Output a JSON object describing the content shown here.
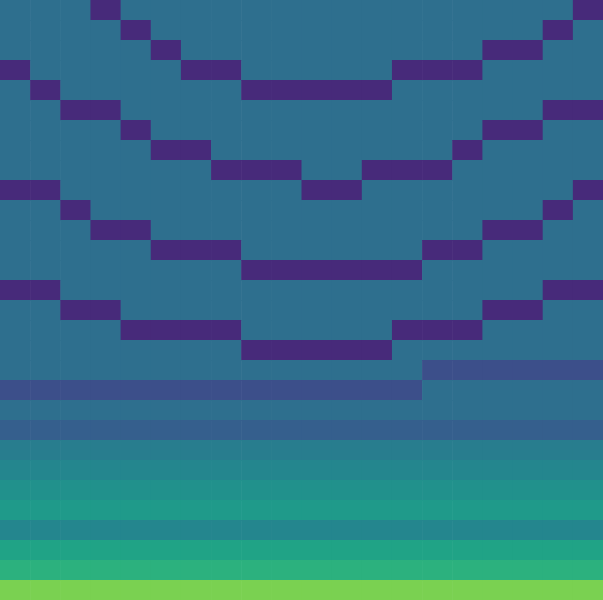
{
  "chart_data": {
    "type": "heatmap",
    "tick_labels": false,
    "zlim": [
      0,
      1
    ],
    "cells": [
      [
        0.36,
        0.36,
        0.36,
        0.12,
        0.36,
        0.36,
        0.36,
        0.36,
        0.36,
        0.36,
        0.36,
        0.36,
        0.36,
        0.36,
        0.36,
        0.36,
        0.36,
        0.36,
        0.36,
        0.12
      ],
      [
        0.36,
        0.36,
        0.36,
        0.36,
        0.12,
        0.36,
        0.36,
        0.36,
        0.36,
        0.36,
        0.36,
        0.36,
        0.36,
        0.36,
        0.36,
        0.36,
        0.36,
        0.36,
        0.12,
        0.36
      ],
      [
        0.36,
        0.36,
        0.36,
        0.36,
        0.36,
        0.12,
        0.36,
        0.36,
        0.36,
        0.36,
        0.36,
        0.36,
        0.36,
        0.36,
        0.36,
        0.36,
        0.12,
        0.12,
        0.36,
        0.36
      ],
      [
        0.12,
        0.36,
        0.36,
        0.36,
        0.36,
        0.36,
        0.12,
        0.12,
        0.36,
        0.36,
        0.36,
        0.36,
        0.36,
        0.12,
        0.12,
        0.12,
        0.36,
        0.36,
        0.36,
        0.36
      ],
      [
        0.36,
        0.12,
        0.36,
        0.36,
        0.36,
        0.36,
        0.36,
        0.36,
        0.12,
        0.12,
        0.12,
        0.12,
        0.12,
        0.36,
        0.36,
        0.36,
        0.36,
        0.36,
        0.36,
        0.36
      ],
      [
        0.36,
        0.36,
        0.12,
        0.12,
        0.36,
        0.36,
        0.36,
        0.36,
        0.36,
        0.36,
        0.36,
        0.36,
        0.36,
        0.36,
        0.36,
        0.36,
        0.36,
        0.36,
        0.12,
        0.12
      ],
      [
        0.36,
        0.36,
        0.36,
        0.36,
        0.12,
        0.36,
        0.36,
        0.36,
        0.36,
        0.36,
        0.36,
        0.36,
        0.36,
        0.36,
        0.36,
        0.36,
        0.12,
        0.12,
        0.36,
        0.36
      ],
      [
        0.36,
        0.36,
        0.36,
        0.36,
        0.36,
        0.12,
        0.12,
        0.36,
        0.36,
        0.36,
        0.36,
        0.36,
        0.36,
        0.36,
        0.36,
        0.12,
        0.36,
        0.36,
        0.36,
        0.36
      ],
      [
        0.36,
        0.36,
        0.36,
        0.36,
        0.36,
        0.36,
        0.36,
        0.12,
        0.12,
        0.12,
        0.36,
        0.36,
        0.12,
        0.12,
        0.12,
        0.36,
        0.36,
        0.36,
        0.36,
        0.36
      ],
      [
        0.12,
        0.12,
        0.36,
        0.36,
        0.36,
        0.36,
        0.36,
        0.36,
        0.36,
        0.36,
        0.12,
        0.12,
        0.36,
        0.36,
        0.36,
        0.36,
        0.36,
        0.36,
        0.36,
        0.12
      ],
      [
        0.36,
        0.36,
        0.12,
        0.36,
        0.36,
        0.36,
        0.36,
        0.36,
        0.36,
        0.36,
        0.36,
        0.36,
        0.36,
        0.36,
        0.36,
        0.36,
        0.36,
        0.36,
        0.12,
        0.36
      ],
      [
        0.36,
        0.36,
        0.36,
        0.12,
        0.12,
        0.36,
        0.36,
        0.36,
        0.36,
        0.36,
        0.36,
        0.36,
        0.36,
        0.36,
        0.36,
        0.36,
        0.12,
        0.12,
        0.36,
        0.36
      ],
      [
        0.36,
        0.36,
        0.36,
        0.36,
        0.36,
        0.12,
        0.12,
        0.12,
        0.36,
        0.36,
        0.36,
        0.36,
        0.36,
        0.36,
        0.12,
        0.12,
        0.36,
        0.36,
        0.36,
        0.36
      ],
      [
        0.36,
        0.36,
        0.36,
        0.36,
        0.36,
        0.36,
        0.36,
        0.36,
        0.12,
        0.12,
        0.12,
        0.12,
        0.12,
        0.12,
        0.36,
        0.36,
        0.36,
        0.36,
        0.36,
        0.36
      ],
      [
        0.12,
        0.12,
        0.36,
        0.36,
        0.36,
        0.36,
        0.36,
        0.36,
        0.36,
        0.36,
        0.36,
        0.36,
        0.36,
        0.36,
        0.36,
        0.36,
        0.36,
        0.36,
        0.12,
        0.12
      ],
      [
        0.36,
        0.36,
        0.12,
        0.12,
        0.36,
        0.36,
        0.36,
        0.36,
        0.36,
        0.36,
        0.36,
        0.36,
        0.36,
        0.36,
        0.36,
        0.36,
        0.12,
        0.12,
        0.36,
        0.36
      ],
      [
        0.36,
        0.36,
        0.36,
        0.36,
        0.12,
        0.12,
        0.12,
        0.12,
        0.36,
        0.36,
        0.36,
        0.36,
        0.36,
        0.12,
        0.12,
        0.12,
        0.36,
        0.36,
        0.36,
        0.36
      ],
      [
        0.36,
        0.36,
        0.36,
        0.36,
        0.36,
        0.36,
        0.36,
        0.36,
        0.12,
        0.12,
        0.12,
        0.12,
        0.12,
        0.36,
        0.36,
        0.36,
        0.36,
        0.36,
        0.36,
        0.36
      ],
      [
        0.36,
        0.36,
        0.36,
        0.36,
        0.36,
        0.36,
        0.36,
        0.36,
        0.36,
        0.36,
        0.36,
        0.36,
        0.36,
        0.36,
        0.24,
        0.24,
        0.24,
        0.24,
        0.24,
        0.24
      ],
      [
        0.24,
        0.24,
        0.24,
        0.24,
        0.24,
        0.24,
        0.24,
        0.24,
        0.24,
        0.24,
        0.24,
        0.24,
        0.24,
        0.24,
        0.36,
        0.36,
        0.36,
        0.36,
        0.36,
        0.36
      ],
      [
        0.36,
        0.36,
        0.36,
        0.36,
        0.36,
        0.36,
        0.36,
        0.36,
        0.36,
        0.36,
        0.36,
        0.36,
        0.36,
        0.36,
        0.36,
        0.36,
        0.36,
        0.36,
        0.36,
        0.36
      ],
      [
        0.3,
        0.3,
        0.3,
        0.3,
        0.3,
        0.3,
        0.3,
        0.3,
        0.3,
        0.3,
        0.3,
        0.3,
        0.3,
        0.3,
        0.3,
        0.3,
        0.3,
        0.3,
        0.3,
        0.3
      ],
      [
        0.42,
        0.42,
        0.42,
        0.42,
        0.42,
        0.42,
        0.42,
        0.42,
        0.42,
        0.42,
        0.42,
        0.42,
        0.42,
        0.42,
        0.42,
        0.42,
        0.42,
        0.42,
        0.42,
        0.42
      ],
      [
        0.46,
        0.46,
        0.46,
        0.46,
        0.46,
        0.46,
        0.46,
        0.46,
        0.46,
        0.46,
        0.46,
        0.46,
        0.46,
        0.46,
        0.46,
        0.46,
        0.46,
        0.46,
        0.46,
        0.46
      ],
      [
        0.5,
        0.5,
        0.5,
        0.5,
        0.5,
        0.5,
        0.5,
        0.5,
        0.5,
        0.5,
        0.5,
        0.5,
        0.5,
        0.5,
        0.5,
        0.5,
        0.5,
        0.5,
        0.5,
        0.5
      ],
      [
        0.54,
        0.54,
        0.54,
        0.54,
        0.54,
        0.54,
        0.54,
        0.54,
        0.54,
        0.54,
        0.54,
        0.54,
        0.54,
        0.54,
        0.54,
        0.54,
        0.54,
        0.54,
        0.54,
        0.54
      ],
      [
        0.46,
        0.46,
        0.46,
        0.46,
        0.46,
        0.46,
        0.46,
        0.46,
        0.46,
        0.46,
        0.46,
        0.46,
        0.46,
        0.46,
        0.46,
        0.46,
        0.46,
        0.46,
        0.46,
        0.46
      ],
      [
        0.58,
        0.58,
        0.58,
        0.58,
        0.58,
        0.58,
        0.58,
        0.58,
        0.58,
        0.58,
        0.58,
        0.58,
        0.58,
        0.58,
        0.58,
        0.58,
        0.58,
        0.58,
        0.58,
        0.58
      ],
      [
        0.64,
        0.64,
        0.64,
        0.64,
        0.64,
        0.64,
        0.64,
        0.64,
        0.64,
        0.64,
        0.64,
        0.64,
        0.64,
        0.64,
        0.64,
        0.64,
        0.64,
        0.64,
        0.64,
        0.64
      ],
      [
        0.8,
        0.8,
        0.8,
        0.8,
        0.8,
        0.8,
        0.8,
        0.8,
        0.8,
        0.8,
        0.8,
        0.8,
        0.8,
        0.8,
        0.8,
        0.8,
        0.8,
        0.8,
        0.8,
        0.8
      ]
    ]
  }
}
